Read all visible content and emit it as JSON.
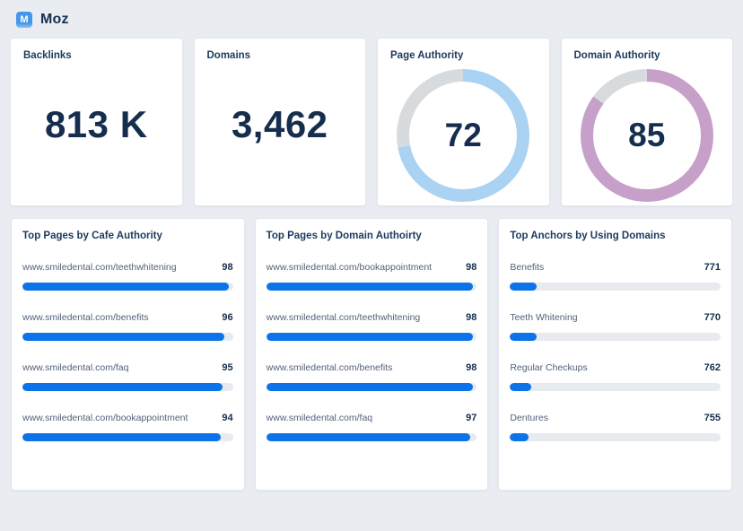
{
  "header": {
    "logo_letter": "M",
    "title": "Moz"
  },
  "stat_cards": [
    {
      "type": "number",
      "title": "Backlinks",
      "value": "813 K"
    },
    {
      "type": "number",
      "title": "Domains",
      "value": "3,462"
    },
    {
      "type": "donut",
      "title": "Page Authority",
      "value": "72",
      "percent": 72,
      "color": "#a9d2f3"
    },
    {
      "type": "donut",
      "title": "Domain Authority",
      "value": "85",
      "percent": 85,
      "color": "#c6a0c8"
    }
  ],
  "panels": [
    {
      "title": "Top Pages by Cafe Authority",
      "rows": [
        {
          "label": "www.smiledental.com/teethwhitening",
          "value": "98",
          "fill_pct": 98
        },
        {
          "label": "www.smiledental.com/benefits",
          "value": "96",
          "fill_pct": 96
        },
        {
          "label": "www.smiledental.com/faq",
          "value": "95",
          "fill_pct": 95
        },
        {
          "label": "www.smiledental.com/bookappointment",
          "value": "94",
          "fill_pct": 94
        }
      ]
    },
    {
      "title": "Top Pages by Domain Authoirty",
      "rows": [
        {
          "label": "www.smiledental.com/bookappointment",
          "value": "98",
          "fill_pct": 98
        },
        {
          "label": "www.smiledental.com/teethwhitening",
          "value": "98",
          "fill_pct": 98
        },
        {
          "label": "www.smiledental.com/benefits",
          "value": "98",
          "fill_pct": 98
        },
        {
          "label": "www.smiledental.com/faq",
          "value": "97",
          "fill_pct": 97
        }
      ]
    },
    {
      "title": "Top Anchors by Using Domains",
      "rows": [
        {
          "label": "Benefits",
          "value": "771",
          "fill_pct": 12.5
        },
        {
          "label": "Teeth Whitening",
          "value": "770",
          "fill_pct": 12.5
        },
        {
          "label": "Regular Checkups",
          "value": "762",
          "fill_pct": 10
        },
        {
          "label": "Dentures",
          "value": "755",
          "fill_pct": 9
        }
      ]
    }
  ],
  "colors": {
    "page_bg": "#e9edf2",
    "card_bg": "#ffffff",
    "accent_blue": "#0c74e8",
    "bar_track": "#e7eaee",
    "donut_blue": "#a9d2f3",
    "donut_purple": "#c6a0c8",
    "donut_track": "#d8dbde",
    "navy_text": "#16304f",
    "label_text": "#51627a",
    "logo_bg": "#4596e8"
  },
  "chart_data": [
    {
      "type": "pie",
      "title": "Page Authority",
      "labels": [
        "score",
        "remainder"
      ],
      "values": [
        72,
        28
      ],
      "annotations": [
        "72"
      ]
    },
    {
      "type": "pie",
      "title": "Domain Authority",
      "labels": [
        "score",
        "remainder"
      ],
      "values": [
        85,
        15
      ],
      "annotations": [
        "85"
      ]
    },
    {
      "type": "bar",
      "title": "Top Pages by Cafe Authority",
      "categories": [
        "www.smiledental.com/teethwhitening",
        "www.smiledental.com/benefits",
        "www.smiledental.com/faq",
        "www.smiledental.com/bookappointment"
      ],
      "values": [
        98,
        96,
        95,
        94
      ],
      "xlim": [
        0,
        100
      ]
    },
    {
      "type": "bar",
      "title": "Top Pages by Domain Authoirty",
      "categories": [
        "www.smiledental.com/bookappointment",
        "www.smiledental.com/teethwhitening",
        "www.smiledental.com/benefits",
        "www.smiledental.com/faq"
      ],
      "values": [
        98,
        98,
        98,
        97
      ],
      "xlim": [
        0,
        100
      ]
    },
    {
      "type": "bar",
      "title": "Top Anchors by Using Domains",
      "categories": [
        "Benefits",
        "Teeth Whitening",
        "Regular Checkups",
        "Dentures"
      ],
      "values": [
        771,
        770,
        762,
        755
      ]
    }
  ]
}
